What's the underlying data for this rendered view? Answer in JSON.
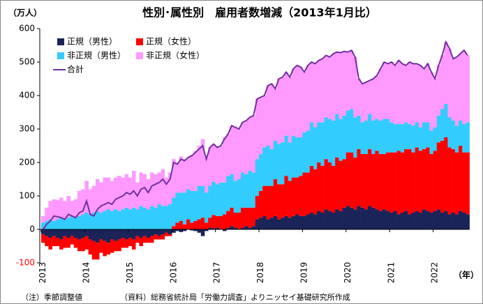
{
  "chart_data": {
    "type": "bar",
    "stacked": true,
    "title": "性別･属性別　雇用者数増減（2013年1月比）",
    "y_unit_label": "（万人）",
    "x_unit_label": "（年）",
    "notes": [
      "（注）季節調整値",
      "（資料）総務省統計局「労働力調査」よりニッセイ基礎研究所作成"
    ],
    "ylim": [
      -100,
      600
    ],
    "yticks": [
      -100,
      0,
      100,
      200,
      300,
      400,
      500,
      600
    ],
    "legend": "top-left",
    "categories": [
      "2013",
      null,
      null,
      null,
      null,
      null,
      null,
      null,
      null,
      null,
      null,
      null,
      "2014",
      null,
      null,
      null,
      null,
      null,
      null,
      null,
      null,
      null,
      null,
      null,
      "2015",
      null,
      null,
      null,
      null,
      null,
      null,
      null,
      null,
      null,
      null,
      null,
      "2016",
      null,
      null,
      null,
      null,
      null,
      null,
      null,
      null,
      null,
      null,
      null,
      "2017",
      null,
      null,
      null,
      null,
      null,
      null,
      null,
      null,
      null,
      null,
      null,
      "2018",
      null,
      null,
      null,
      null,
      null,
      null,
      null,
      null,
      null,
      null,
      null,
      "2019",
      null,
      null,
      null,
      null,
      null,
      null,
      null,
      null,
      null,
      null,
      null,
      "2020",
      null,
      null,
      null,
      null,
      null,
      null,
      null,
      null,
      null,
      null,
      null,
      "2021",
      null,
      null,
      null,
      null,
      null,
      null,
      null,
      null,
      null,
      null,
      null,
      "2022",
      null,
      null,
      null,
      null,
      null,
      null,
      null,
      null,
      null
    ],
    "series": [
      {
        "name": "正規（男性）",
        "color": "#1b2459",
        "type": "bar",
        "values": [
          -15,
          -20,
          -25,
          -20,
          -25,
          -30,
          -20,
          -25,
          -20,
          -25,
          -30,
          -25,
          -20,
          -30,
          -35,
          -40,
          -30,
          -35,
          -40,
          -30,
          -35,
          -30,
          -25,
          -30,
          -25,
          -30,
          -20,
          -25,
          -20,
          -25,
          -20,
          -15,
          -20,
          -15,
          -10,
          -15,
          -10,
          -5,
          -8,
          -5,
          0,
          -3,
          -5,
          -10,
          -20,
          -5,
          5,
          3,
          5,
          0,
          -5,
          5,
          10,
          5,
          0,
          5,
          10,
          5,
          10,
          30,
          35,
          40,
          30,
          35,
          40,
          30,
          35,
          40,
          35,
          40,
          45,
          40,
          40,
          45,
          50,
          45,
          55,
          50,
          60,
          55,
          50,
          60,
          55,
          65,
          70,
          65,
          60,
          70,
          65,
          60,
          70,
          65,
          60,
          55,
          60,
          55,
          50,
          55,
          45,
          50,
          55,
          45,
          50,
          55,
          50,
          60,
          55,
          50,
          55,
          60,
          50,
          55,
          45,
          50,
          45,
          55,
          50,
          45
        ]
      },
      {
        "name": "正規（女性）",
        "color": "#ff0000",
        "type": "bar",
        "values": [
          -25,
          -30,
          -35,
          -30,
          -25,
          -30,
          -35,
          -30,
          -25,
          -30,
          -35,
          -40,
          -40,
          -45,
          -55,
          -50,
          -40,
          -45,
          -35,
          -40,
          -30,
          -35,
          -30,
          -25,
          -25,
          -30,
          -20,
          -25,
          -20,
          -15,
          -20,
          -15,
          -10,
          -15,
          -10,
          -5,
          10,
          20,
          25,
          15,
          30,
          20,
          25,
          30,
          35,
          20,
          30,
          40,
          35,
          40,
          45,
          50,
          55,
          45,
          50,
          60,
          55,
          60,
          55,
          70,
          80,
          90,
          100,
          95,
          110,
          105,
          100,
          120,
          110,
          115,
          110,
          120,
          130,
          125,
          140,
          135,
          145,
          140,
          150,
          145,
          140,
          155,
          150,
          145,
          160,
          165,
          155,
          170,
          160,
          165,
          170,
          160,
          175,
          170,
          165,
          175,
          180,
          175,
          190,
          180,
          185,
          195,
          180,
          190,
          185,
          180,
          190,
          175,
          180,
          200,
          215,
          220,
          200,
          190,
          185,
          195,
          180,
          185
        ]
      },
      {
        "name": "非正規（男性）",
        "color": "#33ccff",
        "type": "bar",
        "values": [
          20,
          25,
          30,
          25,
          30,
          35,
          30,
          35,
          40,
          35,
          40,
          45,
          50,
          45,
          50,
          55,
          50,
          55,
          60,
          55,
          60,
          55,
          60,
          65,
          60,
          65,
          60,
          70,
          65,
          60,
          70,
          65,
          75,
          70,
          70,
          75,
          85,
          90,
          85,
          95,
          90,
          95,
          90,
          100,
          95,
          90,
          95,
          100,
          95,
          100,
          95,
          105,
          100,
          95,
          100,
          105,
          100,
          110,
          105,
          110,
          110,
          115,
          120,
          110,
          115,
          120,
          125,
          120,
          115,
          125,
          120,
          115,
          120,
          125,
          130,
          125,
          120,
          130,
          125,
          130,
          135,
          130,
          125,
          130,
          125,
          130,
          120,
          100,
          95,
          100,
          105,
          100,
          95,
          100,
          105,
          100,
          90,
          85,
          80,
          85,
          80,
          75,
          80,
          75,
          70,
          80,
          75,
          70,
          70,
          80,
          95,
          100,
          90,
          85,
          80,
          75,
          85,
          90
        ]
      },
      {
        "name": "非正規（女性）",
        "color": "#ff99ff",
        "type": "bar",
        "values": [
          20,
          40,
          55,
          65,
          58,
          60,
          55,
          65,
          45,
          55,
          75,
          75,
          95,
          75,
          80,
          95,
          90,
          100,
          95,
          90,
          95,
          105,
          95,
          100,
          95,
          110,
          80,
          100,
          100,
          90,
          100,
          100,
          95,
          110,
          85,
          95,
          115,
          90,
          108,
          100,
          95,
          108,
          120,
          120,
          140,
          105,
          115,
          112,
          110,
          110,
          135,
          125,
          145,
          160,
          150,
          150,
          160,
          160,
          170,
          180,
          170,
          155,
          180,
          195,
          155,
          195,
          195,
          190,
          195,
          200,
          215,
          210,
          180,
          195,
          180,
          190,
          185,
          190,
          185,
          185,
          200,
          185,
          198,
          192,
          175,
          175,
          180,
          110,
          115,
          115,
          100,
          125,
          130,
          155,
          170,
          165,
          180,
          175,
          190,
          180,
          170,
          185,
          185,
          175,
          185,
          160,
          175,
          175,
          145,
          150,
          160,
          185,
          205,
          185,
          205,
          200,
          220,
          200
        ]
      },
      {
        "name": "合計",
        "color": "#7030a0",
        "type": "line",
        "values": [
          0,
          15,
          25,
          40,
          38,
          35,
          30,
          45,
          40,
          35,
          50,
          55,
          85,
          45,
          40,
          60,
          70,
          75,
          80,
          75,
          90,
          95,
          100,
          110,
          105,
          115,
          100,
          120,
          125,
          110,
          130,
          135,
          140,
          150,
          135,
          150,
          200,
          195,
          210,
          205,
          215,
          220,
          230,
          240,
          250,
          210,
          245,
          255,
          245,
          250,
          270,
          285,
          310,
          305,
          300,
          320,
          325,
          335,
          340,
          390,
          395,
          400,
          430,
          435,
          420,
          450,
          455,
          470,
          455,
          480,
          490,
          485,
          470,
          490,
          500,
          495,
          505,
          510,
          520,
          515,
          525,
          530,
          528,
          532,
          530,
          535,
          515,
          450,
          435,
          440,
          445,
          450,
          460,
          480,
          500,
          495,
          500,
          490,
          505,
          495,
          490,
          500,
          495,
          495,
          490,
          480,
          495,
          470,
          450,
          490,
          520,
          560,
          540,
          510,
          515,
          525,
          535,
          520
        ]
      }
    ]
  }
}
